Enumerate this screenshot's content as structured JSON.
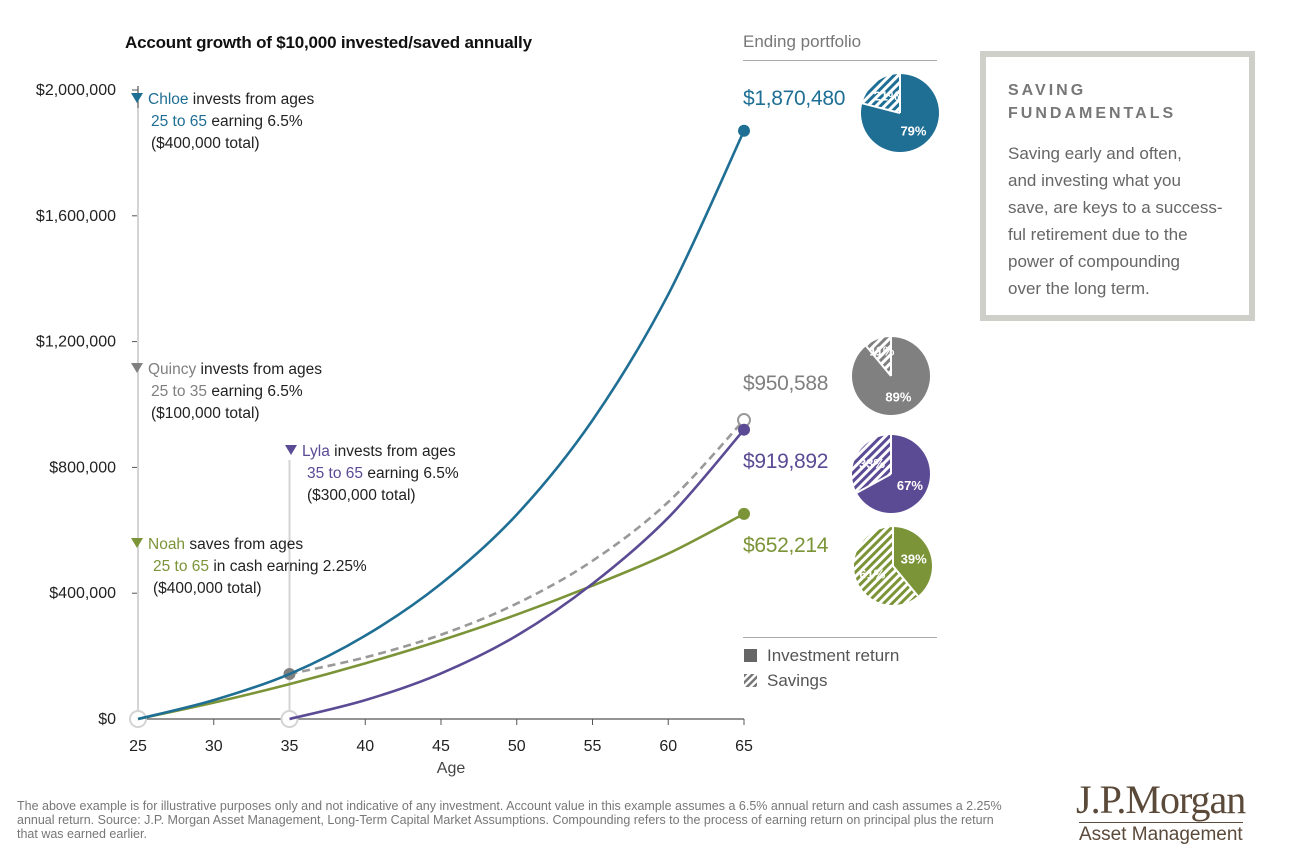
{
  "title": "Account growth of $10,000 invested/saved annually",
  "ending_portfolio_label": "Ending portfolio",
  "colors": {
    "chloe": "#1f6e94",
    "quincy": "#808080",
    "lyla": "#5b4a94",
    "noah": "#7b9438"
  },
  "annotations": {
    "chloe": {
      "name": "Chloe",
      "l1": " invests from ages",
      "range": "25 to 65",
      "l2": " earning 6.5%",
      "l3": "($400,000 total)"
    },
    "quincy": {
      "name": "Quincy",
      "l1": " invests from ages",
      "range": "25 to 35",
      "l2": " earning 6.5%",
      "l3": "($100,000 total)"
    },
    "lyla": {
      "name": "Lyla",
      "l1": " invests from ages",
      "range": "35 to 65",
      "l2": " earning 6.5%",
      "l3": "($300,000 total)"
    },
    "noah": {
      "name": "Noah",
      "l1": " saves from ages",
      "range": "25 to 65",
      "l2": " in cash earning 2.25%",
      "l3": "($400,000 total)"
    }
  },
  "endings": {
    "chloe": "$1,870,480",
    "quincy": "$950,588",
    "lyla": "$919,892",
    "noah": "$652,214"
  },
  "legend": {
    "investment_return": "Investment return",
    "savings": "Savings"
  },
  "sidebar": {
    "title": "SAVING\nFUNDAMENTALS",
    "body": "Saving early and often,\nand investing what you\nsave, are keys to a success-\nful retirement due to the\npower of compounding\nover the long term."
  },
  "footnote": "The above example is for illustrative purposes only and not indicative of any investment. Account value in this example assumes a 6.5% annual return and cash assumes a 2.25% annual return. Source: J.P. Morgan Asset Management, Long-Term Capital Market Assumptions. Compounding refers to the process of earning return on principal plus the return that was earned earlier.",
  "logo": {
    "main": "J.P.Morgan",
    "sub": "Asset Management"
  },
  "chart_data": {
    "type": "line",
    "title": "Account growth of $10,000 invested/saved annually",
    "xlabel": "Age",
    "ylabel": "",
    "xlim": [
      25,
      65
    ],
    "ylim": [
      0,
      2000000
    ],
    "x_ticks": [
      25,
      30,
      35,
      40,
      45,
      50,
      55,
      60,
      65
    ],
    "x_tick_labels": [
      "25",
      "30",
      "35",
      "40",
      "45",
      "50",
      "55",
      "60",
      "65"
    ],
    "y_ticks": [
      0,
      400000,
      800000,
      1200000,
      1600000,
      2000000
    ],
    "y_tick_labels": [
      "$0",
      "$400,000",
      "$800,000",
      "$1,200,000",
      "$1,600,000",
      "$2,000,000"
    ],
    "series": [
      {
        "name": "Chloe",
        "key": "chloe",
        "style": "solid",
        "x": [
          25,
          30,
          35,
          40,
          45,
          50,
          55,
          60,
          65
        ],
        "y": [
          0,
          60000,
          143000,
          265000,
          430000,
          650000,
          950000,
          1350000,
          1870480
        ]
      },
      {
        "name": "Quincy",
        "key": "quincy",
        "style": "dashed",
        "x": [
          35,
          40,
          45,
          50,
          55,
          60,
          65
        ],
        "y": [
          143000,
          196000,
          268000,
          367000,
          503000,
          690000,
          950588
        ]
      },
      {
        "name": "Lyla",
        "key": "lyla",
        "style": "solid",
        "x": [
          35,
          40,
          45,
          50,
          55,
          60,
          65
        ],
        "y": [
          0,
          60000,
          145000,
          265000,
          430000,
          640000,
          919892
        ]
      },
      {
        "name": "Noah",
        "key": "noah",
        "style": "solid",
        "x": [
          25,
          30,
          35,
          40,
          45,
          50,
          55,
          60,
          65
        ],
        "y": [
          0,
          52000,
          111000,
          177000,
          250000,
          332000,
          424000,
          526000,
          652214
        ]
      }
    ],
    "pies": [
      {
        "key": "chloe",
        "ending": 1870480,
        "savings_pct": 21,
        "investment_return_pct": 79,
        "labels": [
          "21%",
          "79%"
        ]
      },
      {
        "key": "quincy",
        "ending": 950588,
        "savings_pct": 11,
        "investment_return_pct": 89,
        "labels": [
          "11%",
          "89%"
        ]
      },
      {
        "key": "lyla",
        "ending": 919892,
        "savings_pct": 33,
        "investment_return_pct": 67,
        "labels": [
          "33%",
          "67%"
        ]
      },
      {
        "key": "noah",
        "ending": 652214,
        "savings_pct": 61,
        "investment_return_pct": 39,
        "labels": [
          "61%",
          "39%"
        ]
      }
    ]
  }
}
